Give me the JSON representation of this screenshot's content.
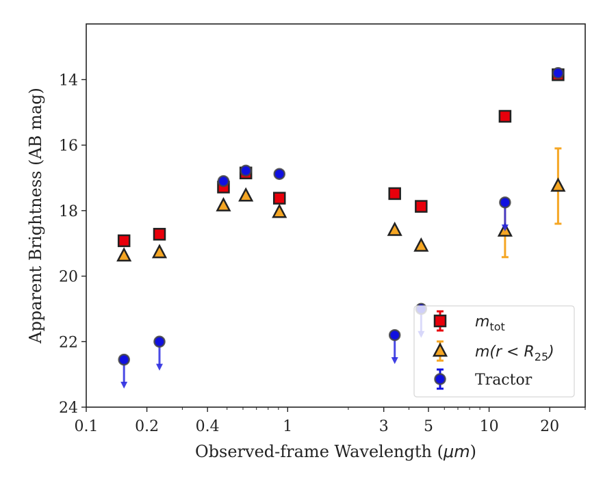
{
  "chart_data": {
    "type": "scatter",
    "xlabel_pre": "Observed-frame Wavelength (",
    "xlabel_unit": "μm",
    "xlabel_post": ")",
    "ylabel": "Apparent Brightness (AB mag)",
    "xscale": "log",
    "xlim": [
      0.1,
      30
    ],
    "ylim": [
      24,
      12.3
    ],
    "y_inverted": true,
    "grid": false,
    "legend_position": "lower-right",
    "xticks": [
      {
        "value": 0.1,
        "label": "0.1"
      },
      {
        "value": 0.2,
        "label": "0.2"
      },
      {
        "value": 0.4,
        "label": "0.4"
      },
      {
        "value": 1,
        "label": "1"
      },
      {
        "value": 3,
        "label": "3"
      },
      {
        "value": 5,
        "label": "5"
      },
      {
        "value": 10,
        "label": "10"
      },
      {
        "value": 20,
        "label": "20"
      }
    ],
    "yticks": [
      {
        "value": 14,
        "label": "14"
      },
      {
        "value": 16,
        "label": "16"
      },
      {
        "value": 18,
        "label": "18"
      },
      {
        "value": 20,
        "label": "20"
      },
      {
        "value": 22,
        "label": "22"
      },
      {
        "value": 24,
        "label": "24"
      }
    ],
    "series": [
      {
        "key": "mtot",
        "legend_main": "m",
        "legend_sub": "tot",
        "legend_after": "",
        "marker": "square",
        "color": "#e8000b",
        "points": [
          {
            "x": 0.154,
            "y": 18.92
          },
          {
            "x": 0.231,
            "y": 18.72
          },
          {
            "x": 0.48,
            "y": 17.28
          },
          {
            "x": 0.62,
            "y": 16.85
          },
          {
            "x": 0.91,
            "y": 17.62
          },
          {
            "x": 3.4,
            "y": 17.48
          },
          {
            "x": 4.6,
            "y": 17.87
          },
          {
            "x": 12,
            "y": 15.12
          },
          {
            "x": 22,
            "y": 13.85
          }
        ]
      },
      {
        "key": "mr25",
        "legend_main": "m(r < R",
        "legend_sub": "25",
        "legend_after": ")",
        "marker": "triangle",
        "color": "#f5a623",
        "points": [
          {
            "x": 0.154,
            "y": 19.38
          },
          {
            "x": 0.231,
            "y": 19.28
          },
          {
            "x": 0.48,
            "y": 17.85
          },
          {
            "x": 0.62,
            "y": 17.55
          },
          {
            "x": 0.91,
            "y": 18.05
          },
          {
            "x": 3.4,
            "y": 18.6
          },
          {
            "x": 4.6,
            "y": 19.08
          },
          {
            "x": 12,
            "y": 18.62,
            "err": 0.8
          },
          {
            "x": 22,
            "y": 17.25,
            "err": 1.15
          }
        ]
      },
      {
        "key": "tractor",
        "legend_main": "Tractor",
        "legend_sub": "",
        "legend_after": "",
        "marker": "circle",
        "color": "#1010e0",
        "points": [
          {
            "x": 0.154,
            "y": 22.55,
            "upper_limit": true
          },
          {
            "x": 0.231,
            "y": 22.0,
            "upper_limit": true
          },
          {
            "x": 0.48,
            "y": 17.1
          },
          {
            "x": 0.62,
            "y": 16.78
          },
          {
            "x": 0.91,
            "y": 16.88
          },
          {
            "x": 3.4,
            "y": 21.8,
            "upper_limit": true
          },
          {
            "x": 4.6,
            "y": 21.0,
            "upper_limit": true
          },
          {
            "x": 12,
            "y": 17.75,
            "upper_limit": true
          },
          {
            "x": 22,
            "y": 13.8
          }
        ]
      }
    ]
  }
}
